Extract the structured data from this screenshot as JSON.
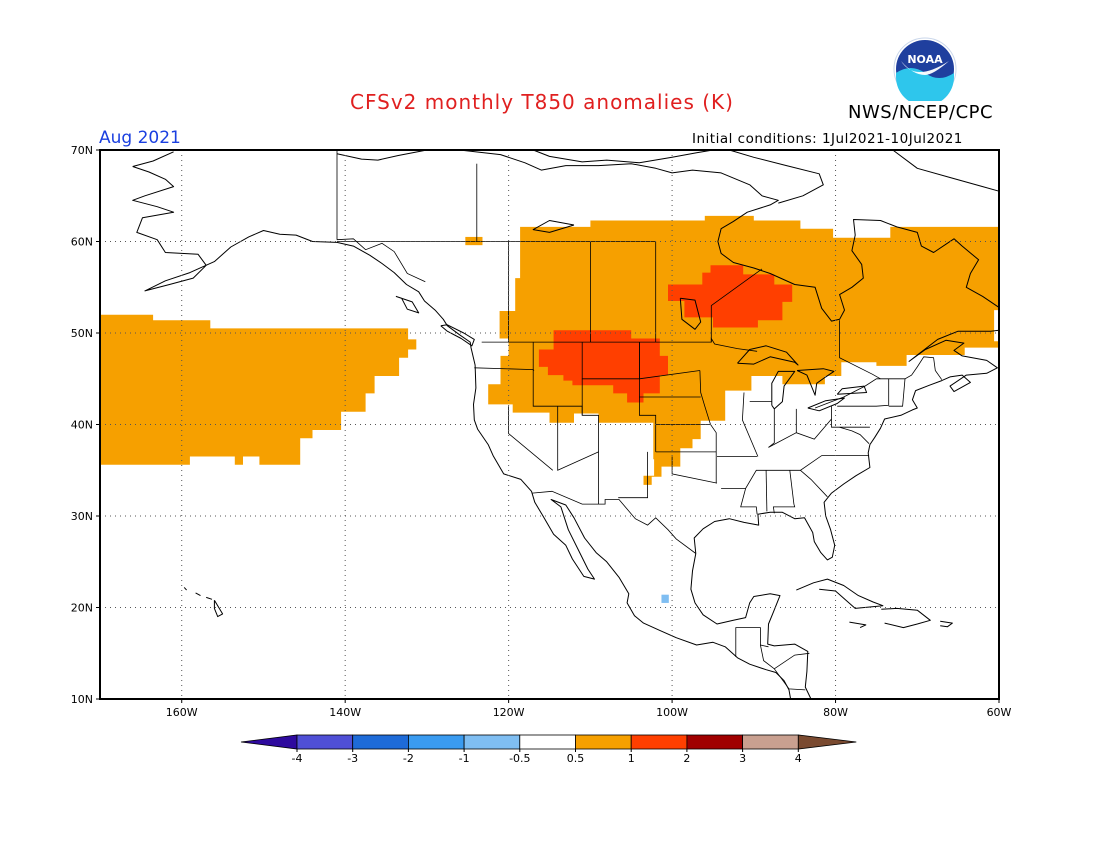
{
  "title": "CFSv2 monthly T850 anomalies (K)",
  "agency": "NWS/NCEP/CPC",
  "logo_text": "NOAA",
  "valid_month": "Aug 2021",
  "initial_conditions": "Initial conditions: 1Jul2021-10Jul2021",
  "map": {
    "lon_range": [
      -170,
      -60
    ],
    "lat_range": [
      10,
      70
    ],
    "lat_ticks": [
      "70N",
      "60N",
      "50N",
      "40N",
      "30N",
      "20N",
      "10N"
    ],
    "lon_ticks": [
      "160W",
      "140W",
      "120W",
      "100W",
      "80W",
      "60W"
    ],
    "grid": "dotted",
    "anomaly_regions": [
      {
        "level": "0.5 to 1",
        "color": "#f6a000",
        "area": "North Pacific 35N-52N, 170W-132W"
      },
      {
        "level": "0.5 to 1",
        "color": "#f6a000",
        "area": "Canada, northern and central US plains"
      },
      {
        "level": "1 to 2",
        "color": "#ff3f00",
        "area": "Northern Rockies / northern plains, Montana-Dakotas"
      },
      {
        "level": "1 to 2",
        "color": "#ff3f00",
        "area": "Central Canada, north of Lake Superior"
      },
      {
        "level": "-1 to -0.5",
        "color": "#7fbef2",
        "area": "Central Mexico, about 21N 101W"
      }
    ]
  },
  "colorbar": {
    "labels": [
      "-4",
      "-3",
      "-2",
      "-1",
      "-0.5",
      "0.5",
      "1",
      "2",
      "3",
      "4"
    ],
    "colors": [
      "#2e0a9e",
      "#4f4fd6",
      "#1e6bd8",
      "#3a9bf0",
      "#7fbef2",
      "#ffffff",
      "#f6a000",
      "#ff3f00",
      "#a00000",
      "#c9a090",
      "#7a4a30"
    ]
  }
}
